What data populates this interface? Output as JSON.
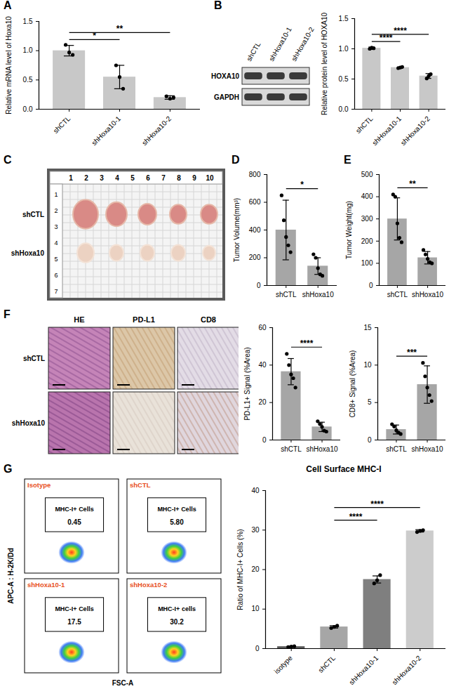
{
  "chart_data": [
    {
      "type": "bar",
      "panel": "A",
      "y_label": "Relative mRNA level of Hoxa10",
      "categories": [
        "shCTL",
        "shHoxa10-1",
        "shHoxa10-2"
      ],
      "values": [
        1.0,
        0.55,
        0.2
      ],
      "errors": [
        0.09,
        0.2,
        0.03
      ],
      "points": [
        [
          1.1,
          0.97,
          0.93
        ],
        [
          0.75,
          0.55,
          0.35
        ],
        [
          0.22,
          0.18,
          0.2
        ]
      ],
      "color": "#c8c8c8",
      "ylim": [
        0,
        1.5
      ],
      "yticks": [
        {
          "value": 0,
          "label": "0.0"
        },
        0.5,
        {
          "value": 1,
          "label": "1.0"
        },
        1.5
      ],
      "annotations": [
        {
          "from": "shCTL",
          "to": "shHoxa10-1",
          "text": "*"
        },
        {
          "from": "shCTL",
          "to": "shHoxa10-2",
          "text": "**"
        }
      ]
    },
    {
      "type": "bar",
      "y_label": "Relative protein level of HOXA10",
      "categories": [
        "shCTL",
        "shHoxa10-1",
        "shHoxa10-2"
      ],
      "values": [
        1.01,
        0.69,
        0.55
      ],
      "errors": [
        0.02,
        0.01,
        0.04
      ],
      "points": [
        [
          1.0,
          1.02,
          1.01
        ],
        [
          0.68,
          0.69,
          0.7
        ],
        [
          0.51,
          0.55,
          0.58
        ]
      ],
      "color": "#c8c8c8",
      "ylim": [
        0,
        1.5
      ],
      "yticks": [
        {
          "value": 0,
          "label": "0.0"
        },
        0.5,
        {
          "value": 1,
          "label": "1.0"
        },
        1.5
      ],
      "annotations": [
        {
          "from": "shCTL",
          "to": "shHoxa10-1",
          "text": "****"
        },
        {
          "from": "shCTL",
          "to": "shHoxa10-2",
          "text": "****"
        }
      ]
    },
    {
      "type": "bar",
      "panel": "D",
      "y_label": "Tumor Volume(mm³)",
      "categories": [
        "shCTL",
        "shHoxa10"
      ],
      "values": [
        400,
        140
      ],
      "errors": [
        215,
        60
      ],
      "points": [
        [
          650,
          470,
          350,
          290,
          240
        ],
        [
          225,
          200,
          125,
          80,
          70
        ]
      ],
      "color": "#a6a6a6",
      "ylim": [
        0,
        800
      ],
      "yticks": [
        0,
        200,
        400,
        600,
        800
      ],
      "annotations": [
        {
          "from": "shCTL",
          "to": "shHoxa10",
          "text": "*"
        }
      ]
    },
    {
      "type": "bar",
      "panel": "E",
      "y_label": "Tumor Weight(mg)",
      "categories": [
        "shCTL",
        "shHoxa10"
      ],
      "values": [
        300,
        125
      ],
      "errors": [
        95,
        28
      ],
      "points": [
        [
          410,
          400,
          280,
          215,
          195
        ],
        [
          160,
          140,
          120,
          105,
          100
        ]
      ],
      "color": "#a6a6a6",
      "ylim": [
        0,
        500
      ],
      "yticks": [
        0,
        100,
        200,
        300,
        400,
        500
      ],
      "annotations": [
        {
          "from": "shCTL",
          "to": "shHoxa10",
          "text": "**"
        }
      ]
    },
    {
      "type": "bar",
      "y_label": "PD-L1+ Signal (%Area)",
      "categories": [
        "shCTL",
        "shHoxa10"
      ],
      "values": [
        36.5,
        7
      ],
      "errors": [
        7,
        2.5
      ],
      "points": [
        [
          46,
          40,
          35,
          33,
          28
        ],
        [
          10,
          8.5,
          7,
          5,
          4.5
        ]
      ],
      "color": "#a6a6a6",
      "ylim": [
        0,
        60
      ],
      "yticks": [
        0,
        20,
        40,
        60
      ],
      "annotations": [
        {
          "from": "shCTL",
          "to": "shHoxa10",
          "text": "****"
        }
      ]
    },
    {
      "type": "bar",
      "y_label": "CD8+ Signal (%Area)",
      "categories": [
        "shCTL",
        "shHoxa10"
      ],
      "values": [
        1.4,
        7.4
      ],
      "errors": [
        0.6,
        2.5
      ],
      "points": [
        [
          2.1,
          1.8,
          1.3,
          1.0,
          0.8
        ],
        [
          10.3,
          8.5,
          7.0,
          6.0,
          5.2
        ]
      ],
      "color": "#a6a6a6",
      "ylim": [
        0,
        15
      ],
      "yticks": [
        0,
        5,
        10,
        15
      ],
      "annotations": [
        {
          "from": "shCTL",
          "to": "shHoxa10",
          "text": "***"
        }
      ]
    },
    {
      "type": "bar",
      "title": "Cell Surface MHC-I",
      "y_label": "Ratio of MHC-I+ Cells (%)",
      "categories": [
        "isotype",
        "shCTL",
        "shHoxa10-1",
        "shHoxa10-2"
      ],
      "values": [
        0.5,
        5.5,
        17.5,
        29.8
      ],
      "errors": [
        0.1,
        0.3,
        0.9,
        0.3
      ],
      "points": [
        [
          0.4,
          0.5,
          0.6
        ],
        [
          5.2,
          5.5,
          5.8
        ],
        [
          16.5,
          17.3,
          18.6
        ],
        [
          29.5,
          29.8,
          30.0
        ]
      ],
      "colors": [
        "#595959",
        "#a6a6a6",
        "#7f7f7f",
        "#cccccc"
      ],
      "ylim": [
        0,
        40
      ],
      "yticks": [
        0,
        10,
        20,
        30,
        40
      ],
      "annotations": [
        {
          "from": "shCTL",
          "to": "shHoxa10-1",
          "text": "****"
        },
        {
          "from": "shCTL",
          "to": "shHoxa10-2",
          "text": "****"
        }
      ]
    }
  ],
  "figure": {
    "blot": {
      "panel": "B",
      "lanes": [
        "shCTL",
        "shHoxa10-1",
        "shHoxa10-2"
      ],
      "bands": [
        "HOXA10",
        "GAPDH"
      ]
    },
    "tumor_photo": {
      "panel": "C",
      "rows": [
        "shCTL",
        "shHoxa10"
      ],
      "ruler_x": [
        1,
        2,
        3,
        4,
        5,
        6,
        7,
        8,
        9,
        10
      ],
      "ruler_y": [
        1,
        2,
        3,
        4,
        5,
        6,
        7
      ]
    },
    "histology": {
      "panel": "F",
      "columns": [
        "HE",
        "PD-L1",
        "CD8"
      ],
      "rows": [
        "shCTL",
        "shHoxa10"
      ]
    },
    "flow": {
      "panel": "G",
      "y_label": "APC-A : H-2K/Dd",
      "x_label": "FSC-A",
      "plots": [
        {
          "name": "Isotype",
          "gate": "MHC-I+ Cells",
          "value": "0.45"
        },
        {
          "name": "shCTL",
          "gate": "MHC-I+ Cells",
          "value": "5.80"
        },
        {
          "name": "shHoxa10-1",
          "gate": "MHC-I+ Cells",
          "value": "17.5"
        },
        {
          "name": "shHoxa10-2",
          "gate": "MHC-I+ cells",
          "value": "30.2"
        }
      ]
    }
  }
}
